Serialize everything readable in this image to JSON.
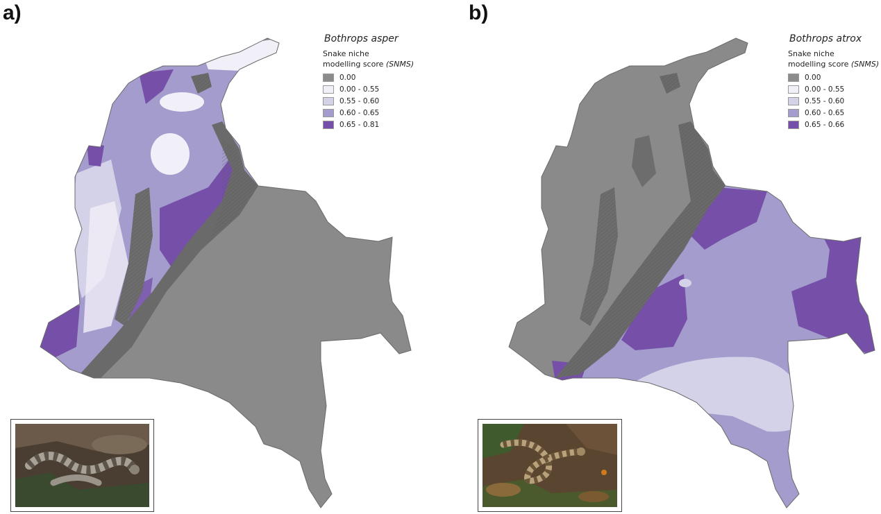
{
  "panels": [
    {
      "letter": "a)",
      "species": "Bothrops asper",
      "subtitle_line1": "Snake niche",
      "subtitle_line2": "modelling score",
      "subtitle_abbr": "(SNMS)",
      "legend": [
        {
          "label": "0.00",
          "color": "#8c8c8c"
        },
        {
          "label": "0.00 - 0.55",
          "color": "#f1eff7"
        },
        {
          "label": "0.55 - 0.60",
          "color": "#d4d2e8"
        },
        {
          "label": "0.60 - 0.65",
          "color": "#a39ccd"
        },
        {
          "label": "0.65 - 0.81",
          "color": "#7650a8"
        }
      ]
    },
    {
      "letter": "b)",
      "species": "Bothrops atrox",
      "subtitle_line1": "Snake niche",
      "subtitle_line2": "modelling score",
      "subtitle_abbr": "(SNMS)",
      "legend": [
        {
          "label": "0.00",
          "color": "#8c8c8c"
        },
        {
          "label": "0.00 - 0.55",
          "color": "#f1eff7"
        },
        {
          "label": "0.55 - 0.60",
          "color": "#d4d2e8"
        },
        {
          "label": "0.60 - 0.65",
          "color": "#a39ccd"
        },
        {
          "label": "0.65 - 0.66",
          "color": "#7650a8"
        }
      ]
    }
  ],
  "colors": {
    "relief": "#8a8a8a",
    "relief_dark": "#5e5e5e",
    "class_low": "#f1eff7",
    "class_mid": "#d4d2e8",
    "class_high": "#a39ccd",
    "class_top": "#7650a8"
  },
  "photos": [
    "snake-photo-bothrops-asper",
    "snake-photo-bothrops-atrox"
  ]
}
